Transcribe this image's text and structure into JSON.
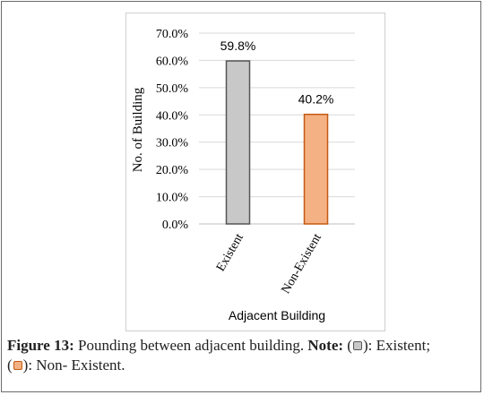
{
  "chart_data": {
    "type": "bar",
    "categories": [
      "Existent",
      "Non-Existent"
    ],
    "values": [
      59.8,
      40.2
    ],
    "data_labels": [
      "59.8%",
      "40.2%"
    ],
    "xlabel": "Adjacent Building",
    "ylabel": "No. of Building",
    "ylim": [
      0,
      70
    ],
    "y_ticks": [
      "0.0%",
      "10.0%",
      "20.0%",
      "30.0%",
      "40.0%",
      "50.0%",
      "60.0%",
      "70.0%"
    ],
    "grid": true,
    "colors": [
      "#c8c8c8",
      "#f4b183"
    ],
    "edge_colors": [
      "#555555",
      "#c55a11"
    ]
  },
  "caption": {
    "figure_label": "Figure 13:",
    "text": " Pounding between adjacent building. ",
    "note_label": "Note:",
    "item1_open": " (",
    "item1_close": "): Existent;",
    "item2_open": "(",
    "item2_close": "): Non- Existent."
  }
}
